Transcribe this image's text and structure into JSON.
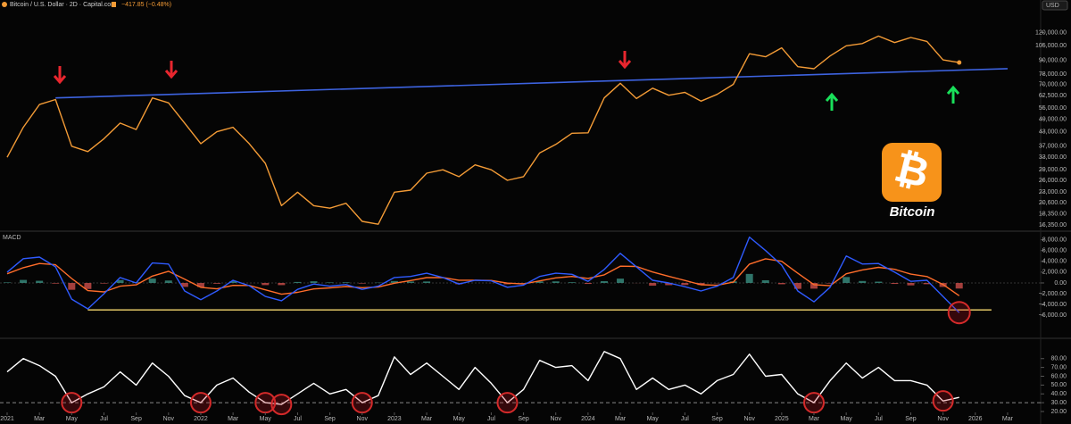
{
  "header": {
    "symbol": "Bitcoin / U.S. Dollar · 2D · Capital.com",
    "change": "−417.85 (−0.48%)",
    "currency": "USD"
  },
  "badge": {
    "symbol": "₿",
    "label": "Bitcoin"
  },
  "chart_data": [
    {
      "type": "price",
      "log_scale": true,
      "color": "#f39b36",
      "x": [
        "2021-01",
        "2021-02",
        "2021-03",
        "2021-04",
        "2021-05",
        "2021-06",
        "2021-07",
        "2021-08",
        "2021-09",
        "2021-10",
        "2021-11",
        "2021-12",
        "2022-01",
        "2022-02",
        "2022-03",
        "2022-04",
        "2022-05",
        "2022-06",
        "2022-07",
        "2022-08",
        "2022-09",
        "2022-10",
        "2022-11",
        "2022-12",
        "2023-01",
        "2023-02",
        "2023-03",
        "2023-04",
        "2023-05",
        "2023-06",
        "2023-07",
        "2023-08",
        "2023-09",
        "2023-10",
        "2023-11",
        "2023-12",
        "2024-01",
        "2024-02",
        "2024-03",
        "2024-04",
        "2024-05",
        "2024-06",
        "2024-07",
        "2024-08",
        "2024-09",
        "2024-10",
        "2024-11",
        "2024-12",
        "2025-01",
        "2025-02",
        "2025-03",
        "2025-04",
        "2025-05",
        "2025-06",
        "2025-07",
        "2025-08",
        "2025-09",
        "2025-10",
        "2025-11",
        "2025-12"
      ],
      "values": [
        33000,
        45000,
        57000,
        60000,
        37000,
        35000,
        40000,
        47000,
        44000,
        61000,
        58000,
        47000,
        38000,
        43000,
        45000,
        38000,
        31000,
        20000,
        23000,
        20000,
        19500,
        20500,
        17000,
        16500,
        23000,
        23500,
        28000,
        29000,
        27000,
        30500,
        29000,
        26000,
        27000,
        34500,
        37700,
        42300,
        42500,
        61000,
        71000,
        60600,
        67500,
        62700,
        64600,
        59000,
        63300,
        70200,
        96400,
        93400,
        102400,
        84300,
        82500,
        94200,
        104600,
        107100,
        115700,
        108200,
        114000,
        109500,
        90400,
        88000
      ],
      "ylim": [
        15500,
        145000
      ],
      "yticks": [
        {
          "value": 120000,
          "label": "120,000.00"
        },
        {
          "value": 105000,
          "label": "105,000.00"
        },
        {
          "value": 90000,
          "label": "90,000.00"
        },
        {
          "value": 78000,
          "label": "78,000.00"
        },
        {
          "value": 70000,
          "label": "70,000.00"
        },
        {
          "value": 62500,
          "label": "62,500.00"
        },
        {
          "value": 55000,
          "label": "55,000.00"
        },
        {
          "value": 49000,
          "label": "49,000.00"
        },
        {
          "value": 43000,
          "label": "43,000.00"
        },
        {
          "value": 37000,
          "label": "37,000.00"
        },
        {
          "value": 33000,
          "label": "33,000.00"
        },
        {
          "value": 29000,
          "label": "29,000.00"
        },
        {
          "value": 26000,
          "label": "26,000.00"
        },
        {
          "value": 23000,
          "label": "23,000.00"
        },
        {
          "value": 20600,
          "label": "20,600.00"
        },
        {
          "value": 18350,
          "label": "18,350.00"
        },
        {
          "value": 16350,
          "label": "16,350.00"
        }
      ],
      "trendline": {
        "x": [
          "2021-04",
          "2026-03"
        ],
        "values": [
          61000,
          82600
        ],
        "color": "#3d63e0"
      }
    },
    {
      "type": "macd",
      "title": "MACD",
      "x": [
        "2021-01",
        "2021-02",
        "2021-03",
        "2021-04",
        "2021-05",
        "2021-06",
        "2021-07",
        "2021-08",
        "2021-09",
        "2021-10",
        "2021-11",
        "2021-12",
        "2022-01",
        "2022-02",
        "2022-03",
        "2022-04",
        "2022-05",
        "2022-06",
        "2022-07",
        "2022-08",
        "2022-09",
        "2022-10",
        "2022-11",
        "2022-12",
        "2023-01",
        "2023-02",
        "2023-03",
        "2023-04",
        "2023-05",
        "2023-06",
        "2023-07",
        "2023-08",
        "2023-09",
        "2023-10",
        "2023-11",
        "2023-12",
        "2024-01",
        "2024-02",
        "2024-03",
        "2024-04",
        "2024-05",
        "2024-06",
        "2024-07",
        "2024-08",
        "2024-09",
        "2024-10",
        "2024-11",
        "2024-12",
        "2025-01",
        "2025-02",
        "2025-03",
        "2025-04",
        "2025-05",
        "2025-06",
        "2025-07",
        "2025-08",
        "2025-09",
        "2025-10",
        "2025-11",
        "2025-12"
      ],
      "macd": {
        "color": "#2f5bff",
        "values": [
          2000,
          4500,
          4800,
          3000,
          -3000,
          -4800,
          -2000,
          1000,
          0,
          3700,
          3500,
          -1500,
          -3100,
          -1500,
          500,
          -500,
          -2500,
          -3300,
          -1200,
          -200,
          -600,
          -300,
          -1200,
          -600,
          1000,
          1200,
          1800,
          1000,
          -200,
          500,
          400,
          -800,
          -400,
          1200,
          1800,
          1600,
          300,
          2500,
          5500,
          3000,
          500,
          0,
          -700,
          -1500,
          -600,
          1000,
          8500,
          6000,
          3300,
          -1500,
          -3500,
          -800,
          5000,
          3500,
          3600,
          2000,
          300,
          500,
          -2500,
          -5500
        ]
      },
      "signal": {
        "color": "#ff6d2a",
        "values": [
          1700,
          2820,
          3612,
          3367,
          820,
          -1428,
          -1657,
          -594,
          -356,
          1266,
          2160,
          696,
          -822,
          -1093,
          -456,
          -474,
          -1284,
          -2090,
          -1734,
          -1120,
          -912,
          -667,
          -880,
          -768,
          -61,
          443,
          986,
          992,
          515,
          509,
          465,
          -41,
          -185,
          369,
          941,
          1205,
          843,
          1506,
          3104,
          3062,
          2037,
          1222,
          453,
          -328,
          -437,
          138,
          3483,
          4490,
          4014,
          1808,
          -315,
          -509,
          1695,
          2417,
          2890,
          2534,
          1640,
          1184,
          -290,
          -2374
        ]
      },
      "histogram": {
        "up_color": "#3d9a8b",
        "down_color": "#d9534f",
        "values": [
          100,
          560,
          400,
          -120,
          -1270,
          -1120,
          -110,
          530,
          120,
          810,
          450,
          -730,
          -760,
          -140,
          320,
          -10,
          -400,
          -400,
          180,
          310,
          100,
          120,
          -110,
          60,
          350,
          250,
          270,
          0,
          -240,
          0,
          -20,
          -250,
          -70,
          280,
          290,
          130,
          -180,
          330,
          800,
          -20,
          -510,
          -410,
          -380,
          -390,
          -50,
          290,
          1670,
          500,
          -240,
          -1100,
          -1060,
          -100,
          1100,
          360,
          240,
          -180,
          -450,
          -230,
          -740,
          -1040
        ]
      },
      "level_line": {
        "x": [
          "2021-06",
          "2026-02"
        ],
        "value": -5000,
        "color": "#f5d76e"
      },
      "ylim": [
        -10100,
        9100
      ],
      "yticks": [
        {
          "value": 8000,
          "label": "8,000.00"
        },
        {
          "value": 6000,
          "label": "6,000.00"
        },
        {
          "value": 4000,
          "label": "4,000.00"
        },
        {
          "value": 2000,
          "label": "2,000.00"
        },
        {
          "value": 0,
          "label": "0.00"
        },
        {
          "value": -2000,
          "label": "−2,000.00"
        },
        {
          "value": -4000,
          "label": "−4,000.00"
        },
        {
          "value": -6000,
          "label": "−6,000.00"
        }
      ]
    },
    {
      "type": "rsi",
      "color": "#ffffff",
      "reference_line": 30,
      "x": [
        "2021-01",
        "2021-02",
        "2021-03",
        "2021-04",
        "2021-05",
        "2021-06",
        "2021-07",
        "2021-08",
        "2021-09",
        "2021-10",
        "2021-11",
        "2021-12",
        "2022-01",
        "2022-02",
        "2022-03",
        "2022-04",
        "2022-05",
        "2022-06",
        "2022-07",
        "2022-08",
        "2022-09",
        "2022-10",
        "2022-11",
        "2022-12",
        "2023-01",
        "2023-02",
        "2023-03",
        "2023-04",
        "2023-05",
        "2023-06",
        "2023-07",
        "2023-08",
        "2023-09",
        "2023-10",
        "2023-11",
        "2023-12",
        "2024-01",
        "2024-02",
        "2024-03",
        "2024-04",
        "2024-05",
        "2024-06",
        "2024-07",
        "2024-08",
        "2024-09",
        "2024-10",
        "2024-11",
        "2024-12",
        "2025-01",
        "2025-02",
        "2025-03",
        "2025-04",
        "2025-05",
        "2025-06",
        "2025-07",
        "2025-08",
        "2025-09",
        "2025-10",
        "2025-11",
        "2025-12"
      ],
      "values": [
        65,
        80,
        72,
        60,
        30,
        40,
        48,
        65,
        50,
        75,
        60,
        38,
        30,
        50,
        58,
        42,
        30,
        28,
        40,
        52,
        40,
        45,
        30,
        38,
        82,
        62,
        75,
        60,
        45,
        70,
        52,
        30,
        45,
        78,
        70,
        72,
        55,
        88,
        80,
        45,
        58,
        45,
        50,
        40,
        55,
        62,
        85,
        60,
        62,
        40,
        30,
        55,
        75,
        58,
        70,
        55,
        55,
        50,
        32,
        36
      ],
      "ylim": [
        19,
        101
      ],
      "yticks": [
        {
          "value": 80,
          "label": "80.00"
        },
        {
          "value": 70,
          "label": "70.00"
        },
        {
          "value": 60,
          "label": "60.00"
        },
        {
          "value": 50,
          "label": "50.00"
        },
        {
          "value": 40,
          "label": "40.00"
        },
        {
          "value": 30,
          "label": "30.00"
        },
        {
          "value": 20,
          "label": "20.00"
        }
      ],
      "xticks": [
        {
          "value": "2021-01",
          "label": "2021"
        },
        {
          "value": "2021-03",
          "label": "Mar"
        },
        {
          "value": "2021-05",
          "label": "May"
        },
        {
          "value": "2021-07",
          "label": "Jul"
        },
        {
          "value": "2021-09",
          "label": "Sep"
        },
        {
          "value": "2021-11",
          "label": "Nov"
        },
        {
          "value": "2022-01",
          "label": "2022"
        },
        {
          "value": "2022-03",
          "label": "Mar"
        },
        {
          "value": "2022-05",
          "label": "May"
        },
        {
          "value": "2022-07",
          "label": "Jul"
        },
        {
          "value": "2022-09",
          "label": "Sep"
        },
        {
          "value": "2022-11",
          "label": "Nov"
        },
        {
          "value": "2023-01",
          "label": "2023"
        },
        {
          "value": "2023-03",
          "label": "Mar"
        },
        {
          "value": "2023-05",
          "label": "May"
        },
        {
          "value": "2023-07",
          "label": "Jul"
        },
        {
          "value": "2023-09",
          "label": "Sep"
        },
        {
          "value": "2023-11",
          "label": "Nov"
        },
        {
          "value": "2024-01",
          "label": "2024"
        },
        {
          "value": "2024-03",
          "label": "Mar"
        },
        {
          "value": "2024-05",
          "label": "May"
        },
        {
          "value": "2024-07",
          "label": "Jul"
        },
        {
          "value": "2024-09",
          "label": "Sep"
        },
        {
          "value": "2024-11",
          "label": "Nov"
        },
        {
          "value": "2025-01",
          "label": "2025"
        },
        {
          "value": "2025-03",
          "label": "Mar"
        },
        {
          "value": "2025-05",
          "label": "May"
        },
        {
          "value": "2025-07",
          "label": "Jul"
        },
        {
          "value": "2025-09",
          "label": "Sep"
        },
        {
          "value": "2025-11",
          "label": "Nov"
        },
        {
          "value": "2026-01",
          "label": "2026"
        },
        {
          "value": "2026-03",
          "label": "Mar"
        }
      ]
    }
  ]
}
